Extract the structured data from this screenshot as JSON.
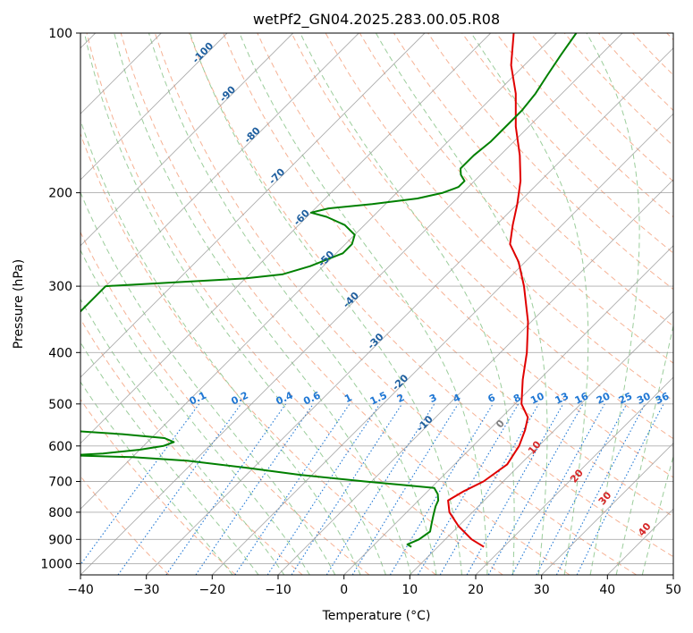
{
  "chart_data": {
    "type": "line",
    "title": "wetPf2_GN04.2025.283.00.05.R08",
    "xlabel": "Temperature (°C)",
    "ylabel": "Pressure (hPa)",
    "xlim": [
      -40,
      50
    ],
    "ylim": [
      1050,
      100
    ],
    "yscale": "log",
    "x_ticks": [
      "−40",
      "−30",
      "−20",
      "−10",
      "0",
      "10",
      "20",
      "30",
      "40",
      "50"
    ],
    "y_ticks": [
      "100",
      "200",
      "300",
      "400",
      "500",
      "600",
      "700",
      "800",
      "900",
      "1000"
    ],
    "y_tick_values": [
      100,
      200,
      300,
      400,
      500,
      600,
      700,
      800,
      900,
      1000
    ],
    "grid": true,
    "colors": {
      "temperature": "#e00000",
      "dewpoint": "#008000",
      "isotherm": "#999999",
      "dry_adiabat": "#f4a582",
      "moist_adiabat": "#90c890",
      "mixing_ratio": "#1f77d4",
      "isotherm_label": "#1f5f9f",
      "moist_label": "#d62728",
      "moist_label_zero": "#7f7f7f"
    },
    "series": [
      {
        "key": "temperature",
        "pressure": [
          930,
          900,
          850,
          800,
          760,
          730,
          700,
          650,
          600,
          560,
          530,
          500,
          450,
          400,
          350,
          300,
          270,
          250,
          230,
          210,
          190,
          170,
          150,
          130,
          115,
          100
        ],
        "temperature": [
          17.0,
          14.0,
          10.0,
          6.5,
          4.5,
          5.5,
          7.0,
          8.0,
          7.0,
          5.5,
          4.0,
          1.0,
          -2.5,
          -6.0,
          -10.5,
          -16.5,
          -21.0,
          -25.0,
          -27.5,
          -30.0,
          -33.0,
          -37.0,
          -42.0,
          -47.0,
          -52.0,
          -56.5
        ]
      },
      {
        "key": "dewpoint",
        "pressure": [
          930,
          920,
          900,
          870,
          840,
          810,
          780,
          760,
          740,
          720,
          710,
          700,
          680,
          660,
          640,
          630,
          625,
          620,
          610,
          600,
          590,
          580,
          570,
          560,
          550,
          300,
          295,
          290,
          285,
          275,
          260,
          250,
          240,
          230,
          222,
          218,
          214,
          210,
          205,
          200,
          195,
          190,
          185,
          180,
          170,
          160,
          150,
          140,
          130,
          120,
          110,
          100
        ],
        "dewpoint": [
          6.0,
          5.0,
          6.0,
          6.5,
          5.5,
          4.5,
          3.5,
          3.0,
          2.0,
          0.5,
          -5.0,
          -11.0,
          -22.0,
          -31.0,
          -41.0,
          -50.0,
          -60.0,
          -55.0,
          -50.0,
          -47.0,
          -46.0,
          -48.0,
          -55.0,
          -65.0,
          -80.0,
          -80.0,
          -70.0,
          -60.0,
          -55.0,
          -52.0,
          -49.0,
          -49.0,
          -50.0,
          -53.0,
          -57.0,
          -60.0,
          -58.0,
          -52.0,
          -46.0,
          -43.0,
          -41.5,
          -41.5,
          -43.0,
          -44.0,
          -44.0,
          -43.5,
          -43.5,
          -43.5,
          -44.0,
          -45.0,
          -46.0,
          -47.0
        ]
      }
    ],
    "isotherm_labels": [
      {
        "t": -100,
        "label": "-100"
      },
      {
        "t": -90,
        "label": "-90"
      },
      {
        "t": -80,
        "label": "-80"
      },
      {
        "t": -70,
        "label": "-70"
      },
      {
        "t": -60,
        "label": "-60"
      },
      {
        "t": -50,
        "label": "-50"
      },
      {
        "t": -40,
        "label": "-40"
      },
      {
        "t": -30,
        "label": "-30"
      },
      {
        "t": -20,
        "label": "-20"
      },
      {
        "t": -10,
        "label": "-10"
      }
    ],
    "mixing_ratio_labels": [
      {
        "w": 0.1,
        "label": "0.1"
      },
      {
        "w": 0.2,
        "label": "0.2"
      },
      {
        "w": 0.4,
        "label": "0.4"
      },
      {
        "w": 0.6,
        "label": "0.6"
      },
      {
        "w": 1,
        "label": "1"
      },
      {
        "w": 1.5,
        "label": "1.5"
      },
      {
        "w": 2,
        "label": "2"
      },
      {
        "w": 3,
        "label": "3"
      },
      {
        "w": 4,
        "label": "4"
      },
      {
        "w": 6,
        "label": "6"
      },
      {
        "w": 8,
        "label": "8"
      },
      {
        "w": 10,
        "label": "10"
      },
      {
        "w": 13,
        "label": "13"
      },
      {
        "w": 16,
        "label": "16"
      },
      {
        "w": 20,
        "label": "20"
      },
      {
        "w": 25,
        "label": "25"
      },
      {
        "w": 30,
        "label": "30"
      },
      {
        "w": 36,
        "label": "36"
      }
    ],
    "moist_adiabat_labels": [
      {
        "theta_w": 0,
        "label": "0"
      },
      {
        "theta_w": 10,
        "label": "10"
      },
      {
        "theta_w": 20,
        "label": "20"
      },
      {
        "theta_w": 30,
        "label": "30"
      },
      {
        "theta_w": 40,
        "label": "40"
      }
    ]
  }
}
